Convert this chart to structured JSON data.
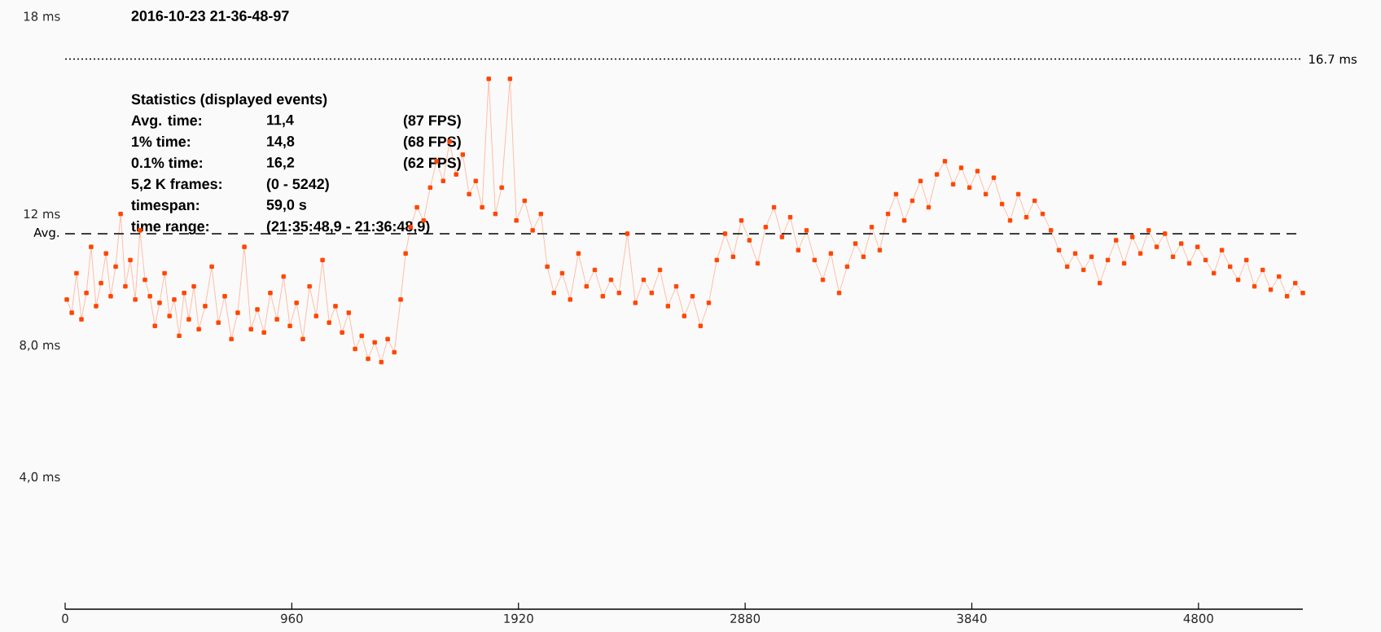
{
  "chart_data": {
    "type": "line",
    "title": "2016-10-23 21-36-48-97",
    "annotations": [
      "Statistics (displayed events)",
      "Avg. time:",
      "11,4",
      "(87 FPS)",
      "1% time:",
      "14,8",
      "(68 FPS)",
      "0.1% time:",
      "16,2",
      "(62 FPS)",
      "5,2 K frames:",
      "(0 - 5242)",
      "timespan:",
      "59,0 s",
      "time range:",
      "(21:35:48,9 - 21:36:48,9)"
    ],
    "xlim": [
      0,
      5242
    ],
    "xticks": [
      0,
      960,
      1920,
      2880,
      3840,
      4800
    ],
    "ylim": [
      0,
      18
    ],
    "yticks": [
      {
        "value": 4,
        "label": "4,0 ms"
      },
      {
        "value": 8,
        "label": "8,0 ms"
      },
      {
        "value": 12,
        "label": "12 ms"
      },
      {
        "value": 18,
        "label": "18 ms"
      }
    ],
    "ref_lines": [
      {
        "axis": "y",
        "value": 11.4,
        "label": "Avg.",
        "line_style": "dashed",
        "color": "#000000"
      },
      {
        "axis": "y",
        "value": 16.7,
        "label": "16.7 ms",
        "line_style": "dotted",
        "color": "#000000"
      }
    ],
    "marker": "square",
    "series": [
      {
        "color": "#ff4500",
        "x": [
          7,
          28,
          48,
          69,
          90,
          110,
          131,
          152,
          173,
          193,
          214,
          235,
          255,
          276,
          297,
          317,
          338,
          359,
          380,
          400,
          421,
          442,
          462,
          483,
          504,
          524,
          545,
          566,
          593,
          621,
          649,
          676,
          704,
          731,
          759,
          787,
          814,
          842,
          869,
          897,
          925,
          952,
          980,
          1007,
          1035,
          1063,
          1090,
          1118,
          1145,
          1173,
          1201,
          1228,
          1256,
          1283,
          1311,
          1339,
          1366,
          1394,
          1421,
          1442,
          1463,
          1490,
          1518,
          1546,
          1573,
          1601,
          1628,
          1656,
          1684,
          1711,
          1739,
          1766,
          1794,
          1822,
          1849,
          1884,
          1911,
          1946,
          1980,
          2015,
          2042,
          2070,
          2105,
          2139,
          2174,
          2208,
          2243,
          2277,
          2312,
          2346,
          2381,
          2415,
          2450,
          2484,
          2519,
          2553,
          2588,
          2622,
          2657,
          2691,
          2726,
          2760,
          2795,
          2829,
          2864,
          2898,
          2933,
          2967,
          3002,
          3036,
          3071,
          3105,
          3140,
          3174,
          3209,
          3243,
          3278,
          3312,
          3347,
          3381,
          3416,
          3450,
          3485,
          3519,
          3554,
          3588,
          3623,
          3657,
          3692,
          3726,
          3761,
          3795,
          3830,
          3864,
          3899,
          3933,
          3968,
          4002,
          4037,
          4071,
          4106,
          4140,
          4175,
          4209,
          4244,
          4278,
          4313,
          4347,
          4382,
          4416,
          4451,
          4485,
          4520,
          4554,
          4589,
          4623,
          4658,
          4692,
          4727,
          4761,
          4796,
          4830,
          4865,
          4899,
          4934,
          4968,
          5003,
          5037,
          5072,
          5106,
          5141,
          5175,
          5210,
          5242
        ],
        "values": [
          9.4,
          9.0,
          10.2,
          8.8,
          9.6,
          11.0,
          9.2,
          9.9,
          10.8,
          9.5,
          10.4,
          12.0,
          9.8,
          10.6,
          9.4,
          11.5,
          10.0,
          9.5,
          8.6,
          9.3,
          10.2,
          8.9,
          9.4,
          8.3,
          9.6,
          8.8,
          9.8,
          8.5,
          9.2,
          10.4,
          8.7,
          9.5,
          8.2,
          9.0,
          11.0,
          8.5,
          9.1,
          8.4,
          9.6,
          8.8,
          10.1,
          8.6,
          9.3,
          8.2,
          9.8,
          8.9,
          10.6,
          8.7,
          9.2,
          8.4,
          9.0,
          7.9,
          8.3,
          7.6,
          8.1,
          7.5,
          8.2,
          7.8,
          9.4,
          10.8,
          11.6,
          12.2,
          11.8,
          12.8,
          13.6,
          13.0,
          14.2,
          13.2,
          13.8,
          12.6,
          13.0,
          12.2,
          16.1,
          12.0,
          12.8,
          16.1,
          11.8,
          12.4,
          11.5,
          12.0,
          10.4,
          9.6,
          10.2,
          9.4,
          10.8,
          9.8,
          10.3,
          9.5,
          10.0,
          9.6,
          11.4,
          9.3,
          10.0,
          9.6,
          10.3,
          9.2,
          9.8,
          8.9,
          9.5,
          8.6,
          9.3,
          10.6,
          11.4,
          10.7,
          11.8,
          11.2,
          10.5,
          11.6,
          12.2,
          11.3,
          11.9,
          10.9,
          11.5,
          10.6,
          10.0,
          10.8,
          9.6,
          10.4,
          11.1,
          10.7,
          11.6,
          10.9,
          12.0,
          12.6,
          11.8,
          12.4,
          13.0,
          12.2,
          13.2,
          13.6,
          12.9,
          13.4,
          12.8,
          13.3,
          12.6,
          13.1,
          12.3,
          11.8,
          12.6,
          11.9,
          12.4,
          12.0,
          11.5,
          10.9,
          10.4,
          10.8,
          10.3,
          10.7,
          9.9,
          10.6,
          11.2,
          10.5,
          11.3,
          10.8,
          11.5,
          11.0,
          11.4,
          10.7,
          11.1,
          10.5,
          11.0,
          10.6,
          10.2,
          10.9,
          10.4,
          10.0,
          10.6,
          9.8,
          10.3,
          9.7,
          10.1,
          9.5,
          9.9,
          9.6
        ]
      }
    ]
  }
}
